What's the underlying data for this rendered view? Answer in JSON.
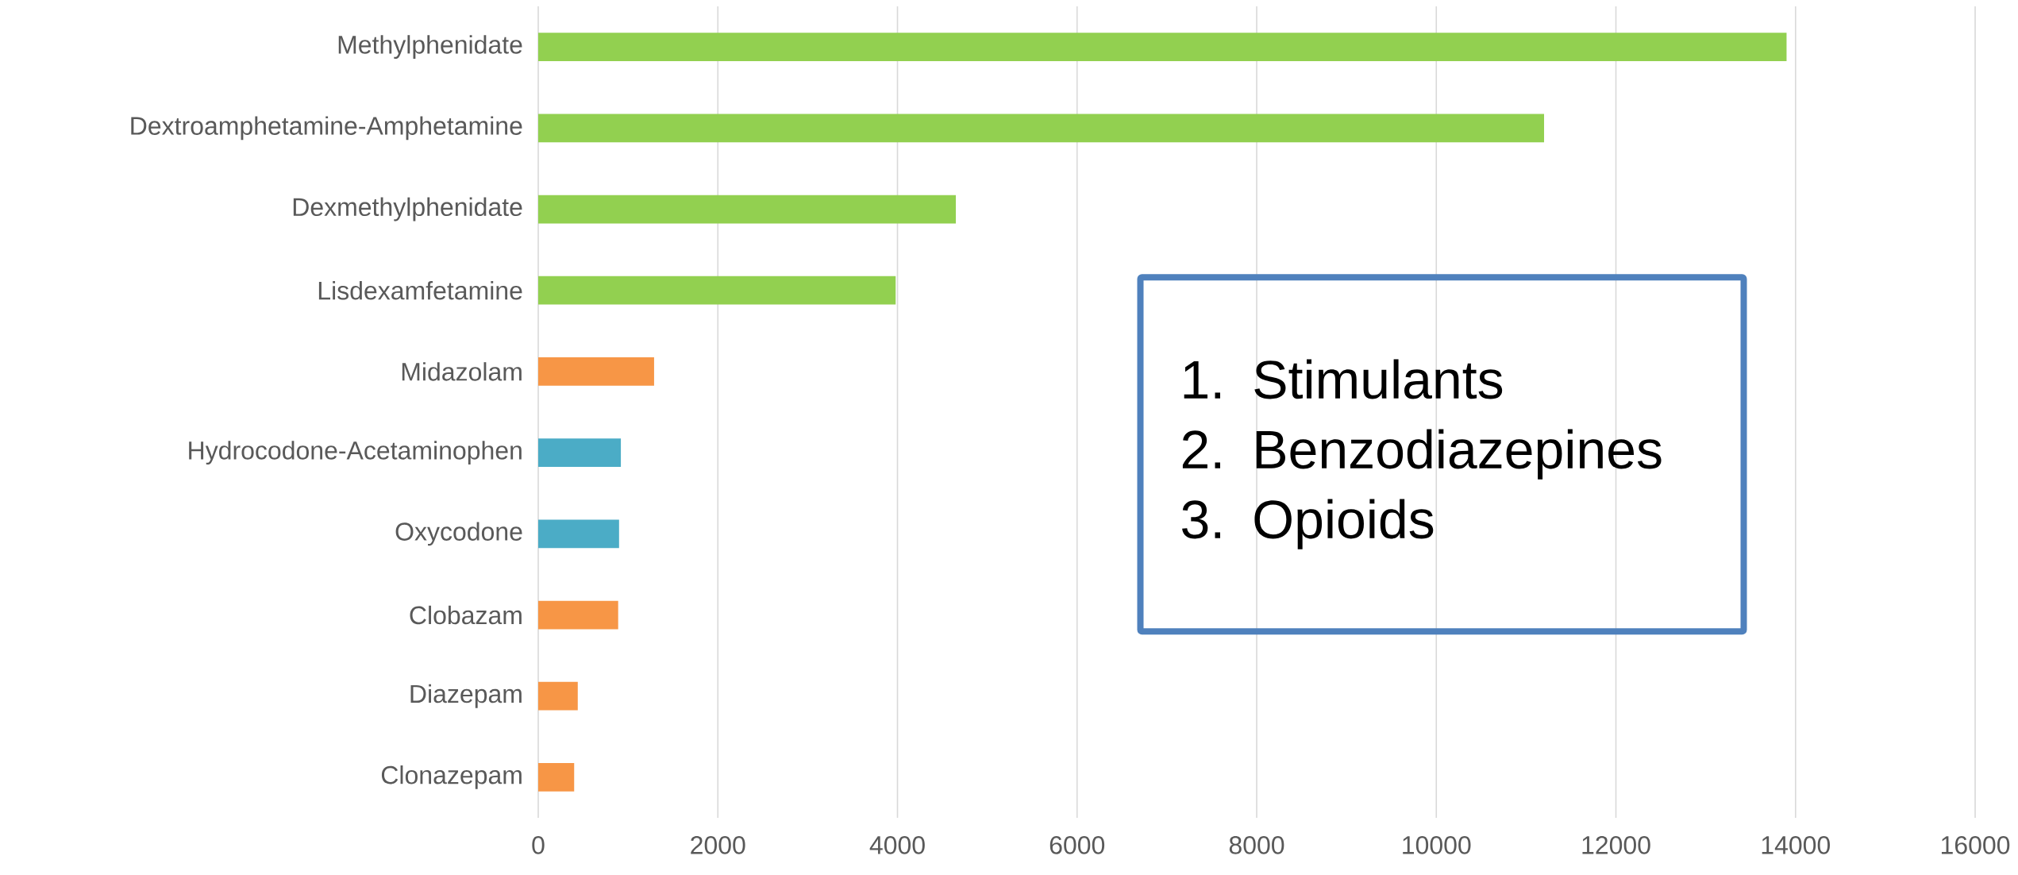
{
  "chart_data": {
    "type": "bar",
    "orientation": "horizontal",
    "categories": [
      "Methylphenidate",
      "Dextroamphetamine-Amphetamine",
      "Dexmethylphenidate",
      "Lisdexamfetamine",
      "Midazolam",
      "Hydrocodone-Acetaminophen",
      "Oxycodone",
      "Clobazam",
      "Diazepam",
      "Clonazepam"
    ],
    "values": [
      13900,
      11200,
      4650,
      3980,
      1290,
      920,
      900,
      890,
      440,
      400
    ],
    "colors": [
      "#92d050",
      "#92d050",
      "#92d050",
      "#92d050",
      "#f79646",
      "#4bacc6",
      "#4bacc6",
      "#f79646",
      "#f79646",
      "#f79646"
    ],
    "xlim": [
      0,
      16000
    ],
    "xticks": [
      0,
      2000,
      4000,
      6000,
      8000,
      10000,
      12000,
      14000,
      16000
    ],
    "grid": "x",
    "annotations": [
      "1. Stimulants",
      "2. Benzodiazepines",
      "3. Opioids"
    ]
  }
}
